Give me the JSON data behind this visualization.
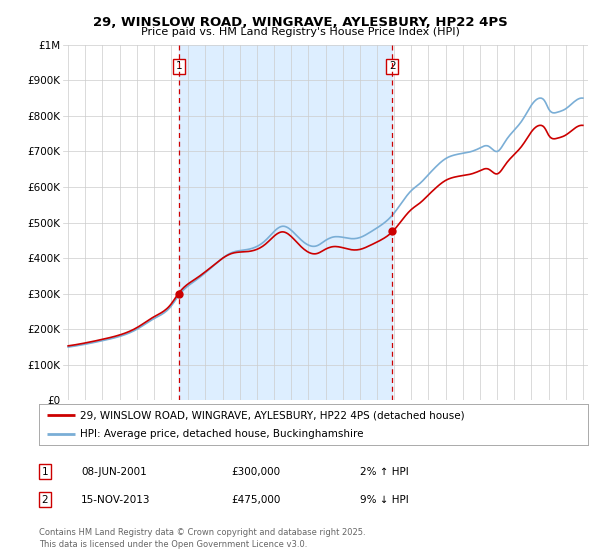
{
  "title": "29, WINSLOW ROAD, WINGRAVE, AYLESBURY, HP22 4PS",
  "subtitle": "Price paid vs. HM Land Registry's House Price Index (HPI)",
  "ylabel_ticks": [
    "£0",
    "£100K",
    "£200K",
    "£300K",
    "£400K",
    "£500K",
    "£600K",
    "£700K",
    "£800K",
    "£900K",
    "£1M"
  ],
  "ytick_values": [
    0,
    100000,
    200000,
    300000,
    400000,
    500000,
    600000,
    700000,
    800000,
    900000,
    1000000
  ],
  "ylim": [
    0,
    1000000
  ],
  "x_start_year": 1995,
  "x_end_year": 2025,
  "sale1_year": 2001.44,
  "sale1_price": 300000,
  "sale1_label": "1",
  "sale2_year": 2013.88,
  "sale2_price": 475000,
  "sale2_label": "2",
  "red_line_color": "#cc0000",
  "blue_line_color": "#7aaed6",
  "fill_color": "#ddeeff",
  "grid_color": "#cccccc",
  "background_color": "#ffffff",
  "legend1_text": "29, WINSLOW ROAD, WINGRAVE, AYLESBURY, HP22 4PS (detached house)",
  "legend2_text": "HPI: Average price, detached house, Buckinghamshire",
  "annotation1": "08-JUN-2001",
  "annotation1_price": "£300,000",
  "annotation1_hpi": "2% ↑ HPI",
  "annotation2": "15-NOV-2013",
  "annotation2_price": "£475,000",
  "annotation2_hpi": "9% ↓ HPI",
  "footer": "Contains HM Land Registry data © Crown copyright and database right 2025.\nThis data is licensed under the Open Government Licence v3.0."
}
